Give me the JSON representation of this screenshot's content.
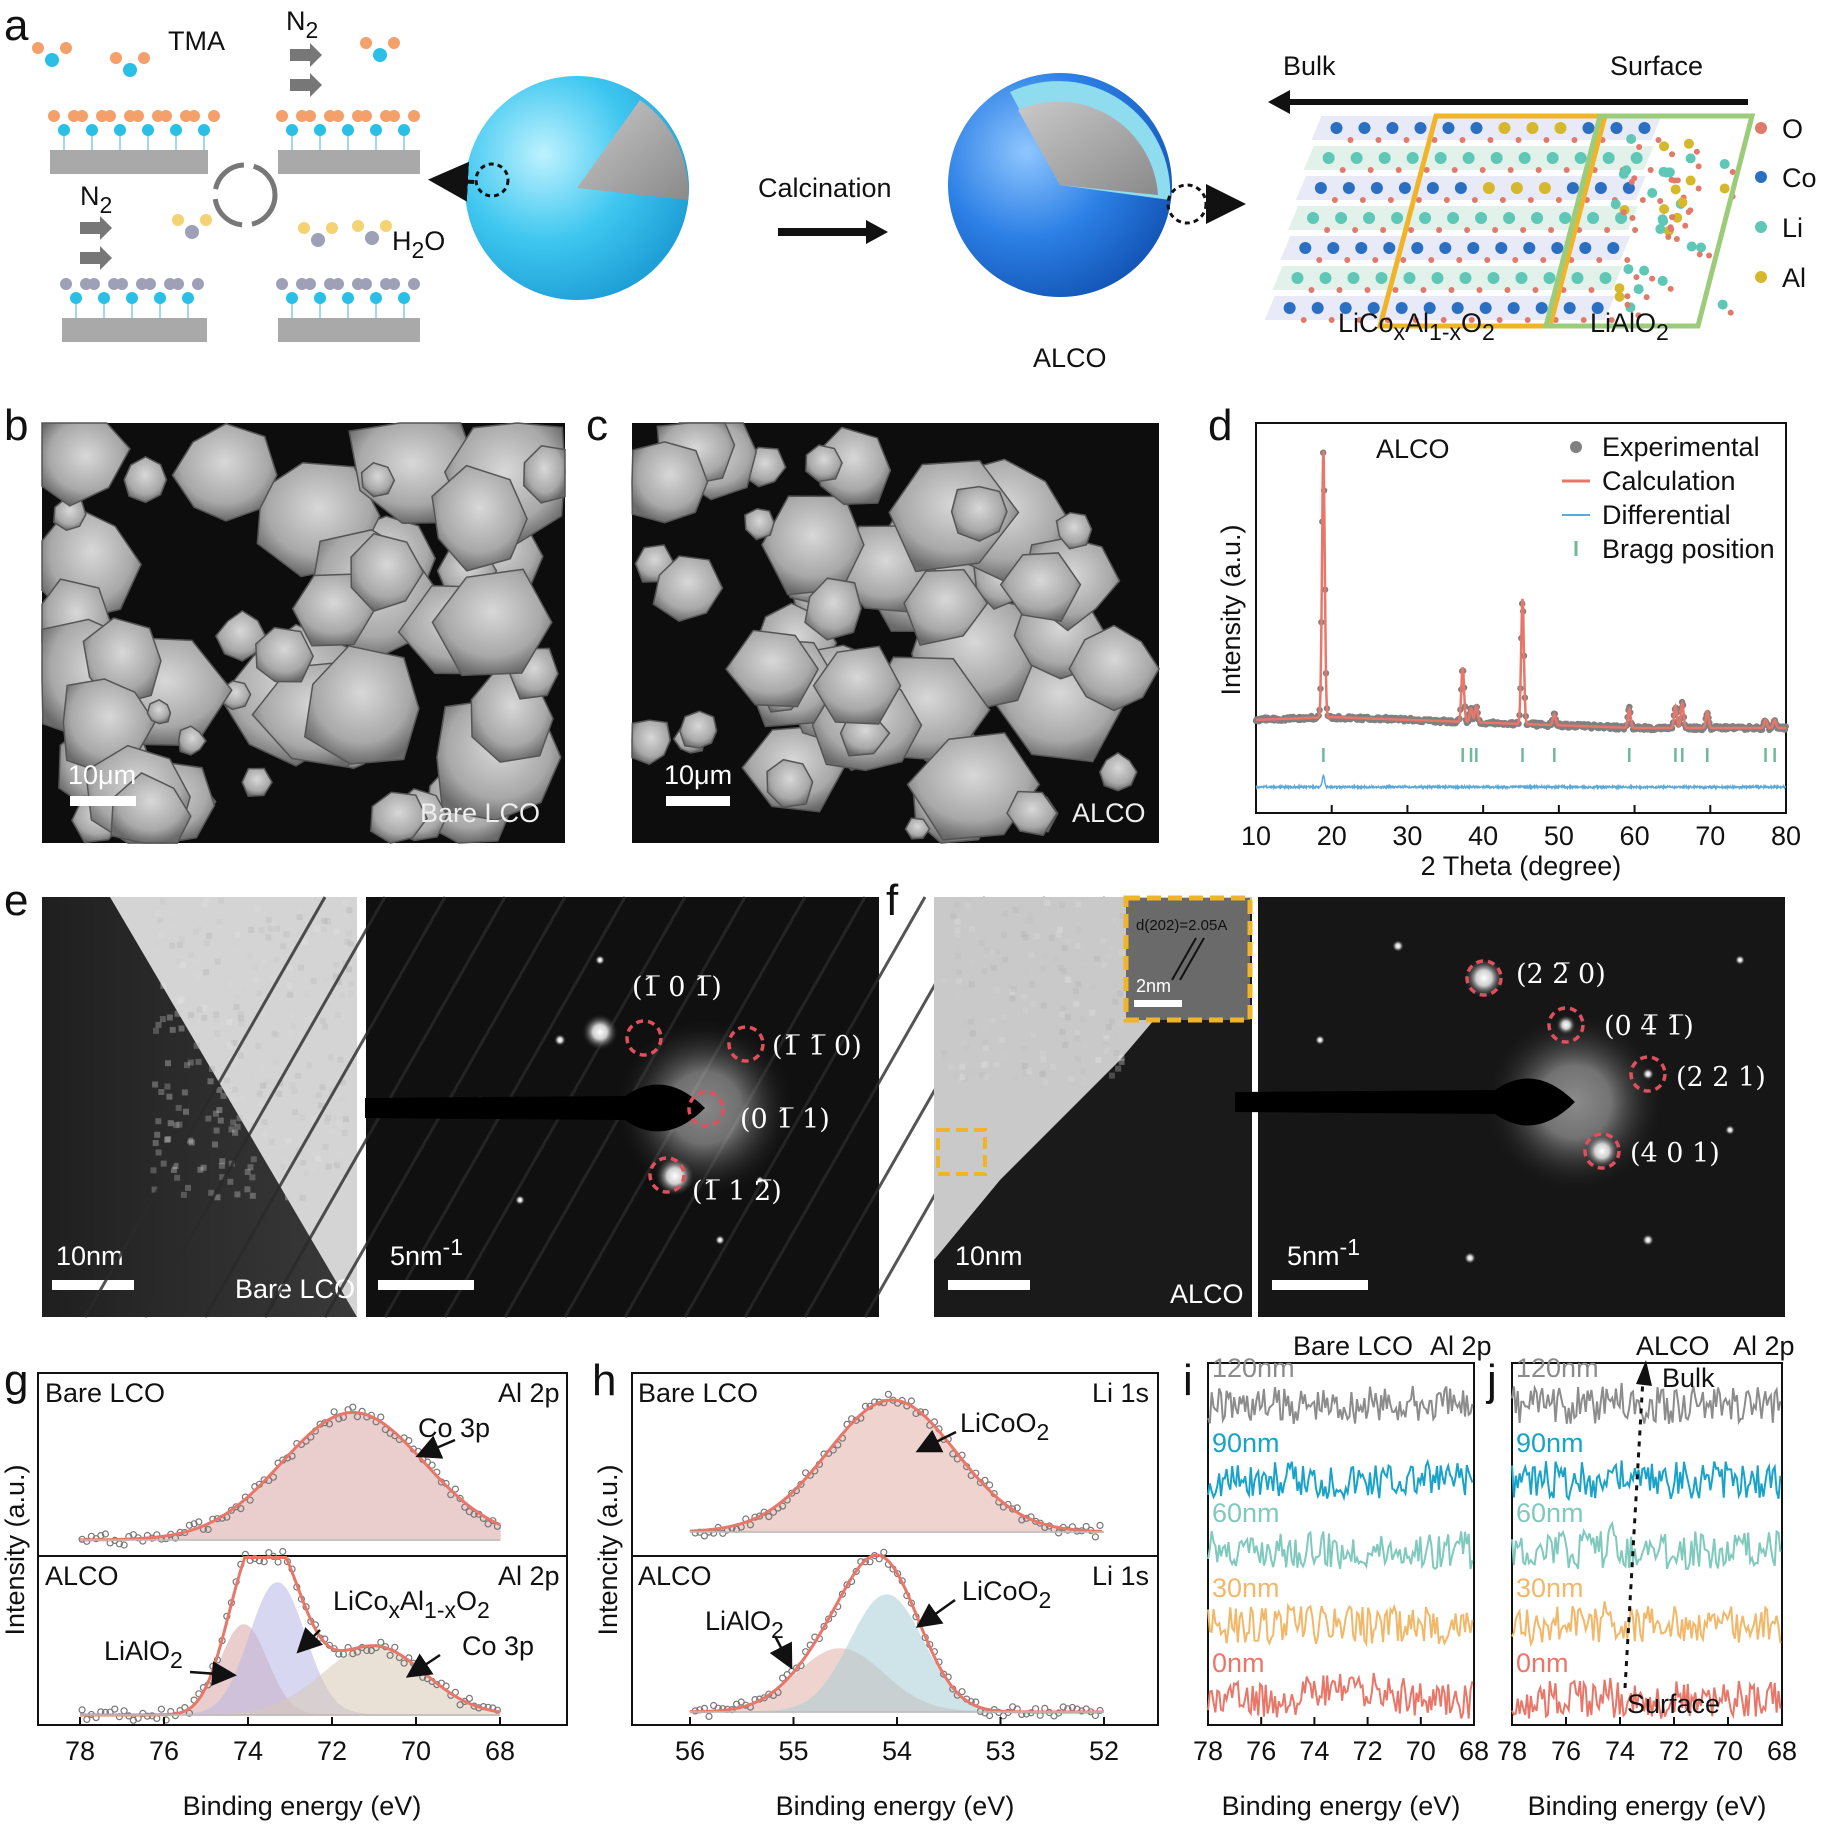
{
  "figure": {
    "panel_a": {
      "letter": "a",
      "tma": "TMA",
      "n2_top": "N",
      "n2_top_sub": "2",
      "n2_bottom": "N",
      "n2_bottom_sub": "2",
      "h2o": "H",
      "h2o_sub": "2",
      "h2o_tail": "O",
      "calcination": "Calcination",
      "alco": "ALCO",
      "bulk": "Bulk",
      "surface": "Surface",
      "phase1_a": "LiCo",
      "phase1_x": "x",
      "phase1_b": "Al",
      "phase1_sub": "1-x",
      "phase1_c": "O",
      "phase1_d": "2",
      "phase2": "LiAlO",
      "phase2_sub": "2",
      "legend": [
        {
          "label": "O",
          "color": "#e07a6a"
        },
        {
          "label": "Co",
          "color": "#2a6fc2"
        },
        {
          "label": "Li",
          "color": "#5ec7b6"
        },
        {
          "label": "Al",
          "color": "#d6b82c"
        }
      ]
    },
    "panel_b": {
      "letter": "b",
      "scale": "10μm",
      "sample": "Bare LCO"
    },
    "panel_c": {
      "letter": "c",
      "scale": "10μm",
      "sample": "ALCO"
    },
    "panel_e": {
      "letter": "e",
      "scale_left": "10nm",
      "sample": "Bare LCO",
      "scale_right": "5nm",
      "scale_right_sup": "-1",
      "spots": [
        "(1̅ 0 1̅)",
        "(1̅ 1̅ 0)",
        "(0 1̅ 1)",
        "(1̅ 1 2̅)"
      ]
    },
    "panel_f": {
      "letter": "f",
      "scale_left": "10nm",
      "sample": "ALCO",
      "inset_d": "d(202)=2.05A",
      "inset_scale": "2nm",
      "scale_right": "5nm",
      "scale_right_sup": "-1",
      "spots": [
        "(2 2̅ 0)",
        "(0 4̅ 1̅)",
        "(2 2 1)",
        "(4 0 1)"
      ]
    },
    "panel_g": {
      "letter": "g",
      "top_sample": "Bare LCO",
      "top_line": "Al 2p",
      "top_peak": "Co 3p",
      "bottom_sample": "ALCO",
      "bottom_line": "Al 2p",
      "peaks": [
        "LiCo",
        "LiAlO",
        "Co 3p"
      ],
      "ylabel": "Intensity (a.u.)",
      "xlabel": "Binding energy (eV)"
    },
    "panel_h": {
      "letter": "h",
      "top_sample": "Bare LCO",
      "top_line": "Li 1s",
      "top_peak": "LiCoO",
      "bottom_sample": "ALCO",
      "bottom_line": "Li 1s",
      "peaks": [
        "LiAlO",
        "LiCoO"
      ],
      "ylabel": "Intencity (a.u.)",
      "xlabel": "Binding energy (eV)"
    },
    "panel_i": {
      "letter": "i",
      "title_a": "Bare LCO",
      "title_b": "Al 2p",
      "xlabel": "Binding energy (eV)"
    },
    "panel_j": {
      "letter": "j",
      "title_a": "ALCO",
      "title_b": "Al 2p",
      "bulk": "Bulk",
      "surface": "Surface",
      "xlabel": "Binding energy (eV)"
    },
    "depth_labels": [
      "120nm",
      "90nm",
      "60nm",
      "30nm",
      "0nm"
    ],
    "depth_colors": [
      "#8c8c8c",
      "#1aa3c8",
      "#7fc9bd",
      "#f2b86a",
      "#e8776a"
    ]
  },
  "chart_data": [
    {
      "type": "line",
      "panel": "d",
      "title": "ALCO",
      "xlabel": "2 Theta (degree)",
      "ylabel": "Intensity (a.u.)",
      "xlim": [
        10,
        80
      ],
      "xticks": [
        10,
        20,
        30,
        40,
        50,
        60,
        70,
        80
      ],
      "legend": [
        "Experimental",
        "Calculation",
        "Differential",
        "Bragg position"
      ],
      "legend_colors": [
        "#808080",
        "#e8776a",
        "#5aa9d8",
        "#6fb89c"
      ],
      "peaks": [
        {
          "x": 18.9,
          "h": 0.98
        },
        {
          "x": 37.3,
          "h": 0.2
        },
        {
          "x": 38.4,
          "h": 0.05
        },
        {
          "x": 39.1,
          "h": 0.06
        },
        {
          "x": 45.2,
          "h": 0.46
        },
        {
          "x": 49.4,
          "h": 0.04
        },
        {
          "x": 59.3,
          "h": 0.07
        },
        {
          "x": 65.4,
          "h": 0.08
        },
        {
          "x": 66.3,
          "h": 0.09
        },
        {
          "x": 69.6,
          "h": 0.06
        },
        {
          "x": 77.3,
          "h": 0.03
        },
        {
          "x": 78.5,
          "h": 0.03
        }
      ],
      "bragg": [
        18.9,
        37.3,
        38.4,
        39.1,
        45.2,
        49.4,
        59.3,
        65.4,
        66.3,
        69.6,
        77.3,
        78.5
      ]
    },
    {
      "type": "area",
      "panel": "g",
      "xlim": [
        78,
        68
      ],
      "xticks": [
        78,
        76,
        74,
        72,
        70,
        68
      ],
      "top": [
        {
          "name": "Co 3p",
          "center": 71.5,
          "width": 1.7,
          "amp": 0.85
        }
      ],
      "bottom": [
        {
          "name": "LiAlO2",
          "center": 74.1,
          "width": 0.55,
          "amp": 0.6
        },
        {
          "name": "LiCoxAl1-xO2",
          "center": 73.3,
          "width": 0.65,
          "amp": 0.88
        },
        {
          "name": "Co 3p",
          "center": 71.0,
          "width": 1.2,
          "amp": 0.46
        }
      ]
    },
    {
      "type": "area",
      "panel": "h",
      "xlim": [
        56,
        52
      ],
      "xticks": [
        56,
        55,
        54,
        53,
        52
      ],
      "top": [
        {
          "name": "LiCoO2",
          "center": 54.05,
          "width": 0.62,
          "amp": 0.88
        }
      ],
      "bottom": [
        {
          "name": "LiAlO2",
          "center": 54.55,
          "width": 0.42,
          "amp": 0.42
        },
        {
          "name": "LiCoO2",
          "center": 54.1,
          "width": 0.35,
          "amp": 0.78
        }
      ]
    },
    {
      "type": "line",
      "panel": "i",
      "xlim": [
        78,
        68
      ],
      "xticks": [
        78,
        76,
        74,
        72,
        70,
        68
      ],
      "series": [
        "120nm",
        "90nm",
        "60nm",
        "30nm",
        "0nm"
      ]
    },
    {
      "type": "line",
      "panel": "j",
      "xlim": [
        78,
        68
      ],
      "xticks": [
        78,
        76,
        74,
        72,
        70,
        68
      ],
      "series": [
        "120nm",
        "90nm",
        "60nm",
        "30nm",
        "0nm"
      ]
    }
  ]
}
